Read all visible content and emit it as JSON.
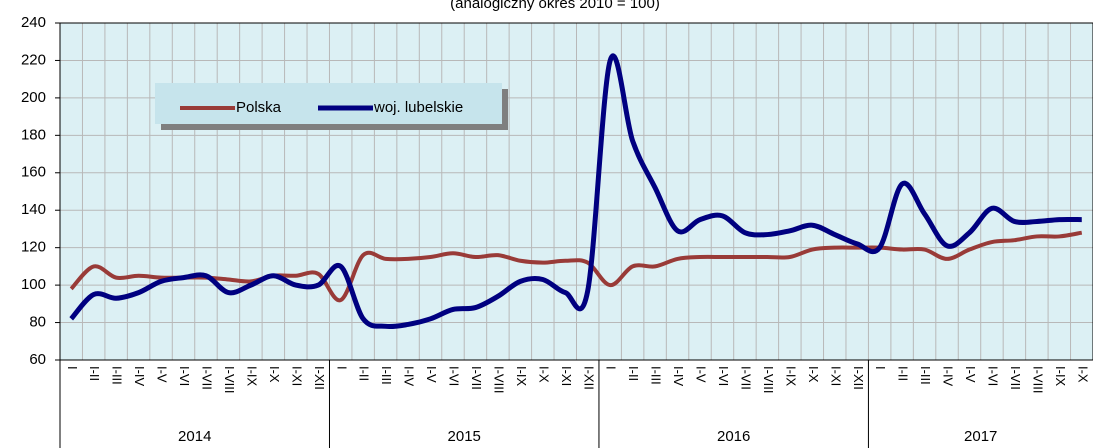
{
  "chart_data": {
    "type": "line",
    "subtitle": "(analogiczny okres 2010 = 100)",
    "categories": [
      "I",
      "I-II",
      "I-III",
      "I-IV",
      "I-V",
      "I-VI",
      "I-VII",
      "I-VIII",
      "I-IX",
      "I-X",
      "I-XI",
      "I-XII",
      "I",
      "I-II",
      "I-III",
      "I-IV",
      "I-V",
      "I-VI",
      "I-VII",
      "I-VIII",
      "I-IX",
      "I-X",
      "I-XI",
      "I-XII",
      "I",
      "I-II",
      "I-III",
      "I-IV",
      "I-V",
      "I-VI",
      "I-VII",
      "I-VIII",
      "I-IX",
      "I-X",
      "I-XI",
      "I-XII",
      "I",
      "I-II",
      "I-III",
      "I-IV",
      "I-V",
      "I-VI",
      "I-VII",
      "I-VIII",
      "I-IX",
      "I-X"
    ],
    "year_labels": [
      "2014",
      "2015",
      "2016",
      "2017"
    ],
    "series": [
      {
        "name": "Polska",
        "color": "#993b38",
        "values": [
          98,
          110,
          104,
          105,
          104,
          104,
          104,
          103,
          102,
          105,
          105,
          106,
          92,
          116,
          114,
          114,
          115,
          117,
          115,
          116,
          113,
          112,
          113,
          112,
          100,
          110,
          110,
          114,
          115,
          115,
          115,
          115,
          115,
          119,
          120,
          120,
          120,
          119,
          119,
          114,
          119,
          123,
          124,
          126,
          126,
          128
        ]
      },
      {
        "name": "woj. lubelskie",
        "color": "#000080",
        "values": [
          82,
          95,
          93,
          96,
          102,
          104,
          105,
          96,
          100,
          105,
          100,
          100,
          110,
          82,
          78,
          79,
          82,
          87,
          88,
          94,
          102,
          103,
          96,
          97,
          220,
          177,
          152,
          129,
          135,
          137,
          128,
          127,
          129,
          132,
          127,
          122,
          120,
          154,
          138,
          121,
          128,
          141,
          134,
          134,
          135,
          135
        ]
      }
    ],
    "ylim": [
      60,
      240
    ],
    "yticks": [
      60,
      80,
      100,
      120,
      140,
      160,
      180,
      200,
      220,
      240
    ],
    "grid": true
  }
}
